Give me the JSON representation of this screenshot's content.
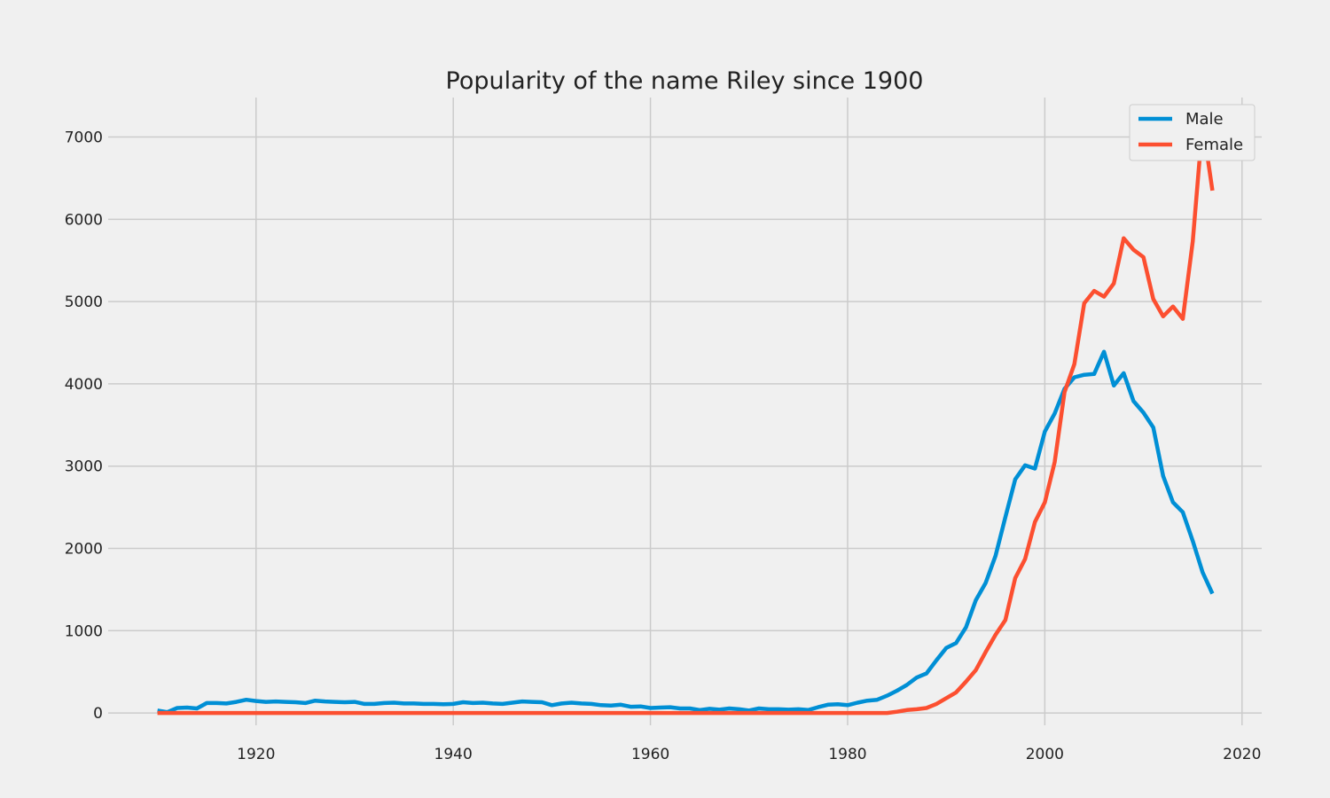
{
  "chart_data": {
    "type": "line",
    "title": "Popularity of the name Riley since 1900",
    "xlabel": "",
    "ylabel": "",
    "xlim": [
      1905,
      2022
    ],
    "ylim": [
      -150,
      7480
    ],
    "xticks": [
      1920,
      1940,
      1960,
      1980,
      2000,
      2020
    ],
    "yticks": [
      0,
      1000,
      2000,
      3000,
      4000,
      5000,
      6000,
      7000
    ],
    "grid": true,
    "legend_position": "top-right",
    "x": [
      1910,
      1911,
      1912,
      1913,
      1914,
      1915,
      1916,
      1917,
      1918,
      1919,
      1920,
      1921,
      1922,
      1923,
      1924,
      1925,
      1926,
      1927,
      1928,
      1929,
      1930,
      1931,
      1932,
      1933,
      1934,
      1935,
      1936,
      1937,
      1938,
      1939,
      1940,
      1941,
      1942,
      1943,
      1944,
      1945,
      1946,
      1947,
      1948,
      1949,
      1950,
      1951,
      1952,
      1953,
      1954,
      1955,
      1956,
      1957,
      1958,
      1959,
      1960,
      1961,
      1962,
      1963,
      1964,
      1965,
      1966,
      1967,
      1968,
      1969,
      1970,
      1971,
      1972,
      1973,
      1974,
      1975,
      1976,
      1977,
      1978,
      1979,
      1980,
      1981,
      1982,
      1983,
      1984,
      1985,
      1986,
      1987,
      1988,
      1989,
      1990,
      1991,
      1992,
      1993,
      1994,
      1995,
      1996,
      1997,
      1998,
      1999,
      2000,
      2001,
      2002,
      2003,
      2004,
      2005,
      2006,
      2007,
      2008,
      2009,
      2010,
      2011,
      2012,
      2013,
      2014,
      2015,
      2016,
      2017
    ],
    "series": [
      {
        "name": "Male",
        "color": "#008fd5",
        "values": [
          30,
          10,
          60,
          65,
          55,
          120,
          120,
          115,
          135,
          160,
          145,
          135,
          140,
          135,
          130,
          120,
          150,
          140,
          135,
          130,
          135,
          110,
          110,
          120,
          125,
          115,
          115,
          110,
          110,
          105,
          110,
          130,
          120,
          125,
          115,
          110,
          125,
          140,
          135,
          130,
          95,
          115,
          125,
          115,
          110,
          95,
          90,
          100,
          75,
          80,
          60,
          65,
          70,
          55,
          55,
          35,
          50,
          40,
          55,
          45,
          30,
          55,
          45,
          45,
          40,
          45,
          35,
          70,
          100,
          105,
          95,
          125,
          150,
          160,
          210,
          270,
          340,
          430,
          480,
          640,
          790,
          850,
          1040,
          1370,
          1580,
          1910,
          2380,
          2840,
          3010,
          2970,
          3420,
          3640,
          3940,
          4080,
          4110,
          4120,
          4390,
          3980,
          4130,
          3790,
          3650,
          3470,
          2880,
          2560,
          2440,
          2090,
          1710,
          1450
        ]
      },
      {
        "name": "Female",
        "color": "#fc4f30",
        "values": [
          0,
          0,
          0,
          0,
          0,
          0,
          0,
          0,
          0,
          0,
          0,
          0,
          0,
          0,
          0,
          0,
          0,
          0,
          0,
          0,
          0,
          0,
          0,
          0,
          0,
          0,
          0,
          0,
          0,
          0,
          0,
          0,
          0,
          0,
          0,
          0,
          0,
          0,
          0,
          0,
          0,
          0,
          0,
          0,
          0,
          0,
          0,
          0,
          0,
          0,
          0,
          0,
          0,
          0,
          0,
          0,
          0,
          0,
          0,
          0,
          0,
          0,
          0,
          0,
          0,
          0,
          0,
          0,
          0,
          0,
          0,
          0,
          0,
          0,
          0,
          15,
          35,
          45,
          60,
          110,
          180,
          250,
          380,
          520,
          740,
          950,
          1130,
          1640,
          1870,
          2320,
          2560,
          3050,
          3900,
          4240,
          4980,
          5130,
          5060,
          5220,
          5770,
          5630,
          5540,
          5030,
          4820,
          4940,
          4790,
          5730,
          7170,
          6350
        ]
      }
    ]
  }
}
